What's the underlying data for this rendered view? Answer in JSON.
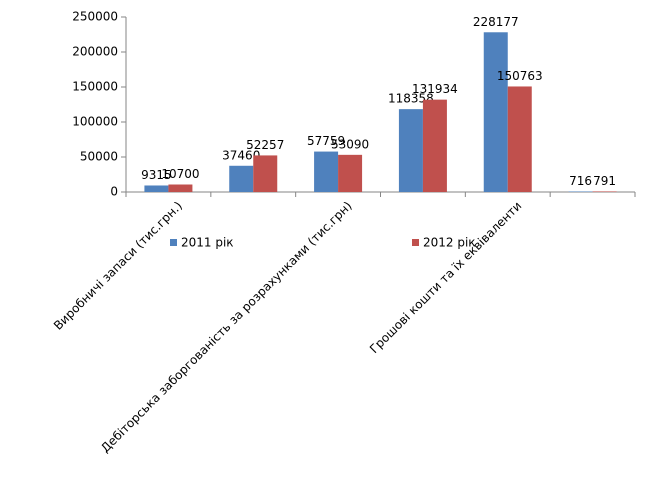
{
  "chart_data": {
    "type": "bar",
    "categories": [
      "Виробничі запаси (тис.грн.)",
      null,
      "Дебіторська заборгованість за розрахунками (тис.грн)",
      null,
      "Грошові кошти та їх еквіваленти",
      null
    ],
    "series": [
      {
        "name": "2011 рік",
        "color": "#4f81bd",
        "values": [
          9315,
          37460,
          57759,
          118358,
          228177,
          716
        ]
      },
      {
        "name": "2012 рік",
        "color": "#c0504d",
        "values": [
          10700,
          52257,
          53090,
          131934,
          150763,
          791
        ]
      }
    ],
    "ylim": [
      0,
      250000
    ],
    "yticks": [
      0,
      50000,
      100000,
      150000,
      200000,
      250000
    ],
    "grid": false
  }
}
